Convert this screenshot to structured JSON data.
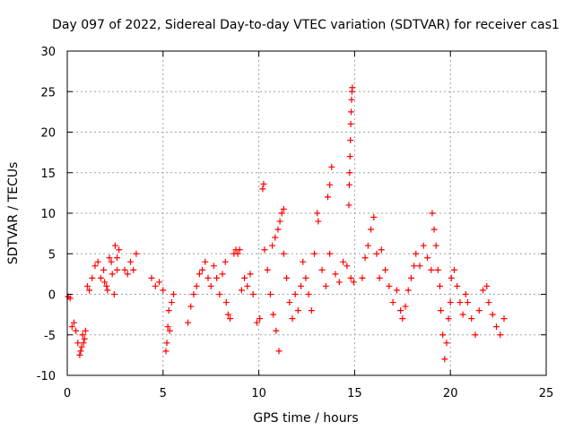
{
  "chart_data": {
    "type": "scatter",
    "title": "Day 097 of 2022, Sidereal Day-to-day VTEC variation (SDTVAR) for receiver cas1",
    "xlabel": "GPS time / hours",
    "ylabel": "SDTVAR / TECUs",
    "xlim": [
      0,
      25
    ],
    "ylim": [
      -10,
      30
    ],
    "xticks": [
      0,
      5,
      10,
      15,
      20,
      25
    ],
    "yticks": [
      -10,
      -5,
      0,
      5,
      10,
      15,
      20,
      25,
      30
    ],
    "grid": true,
    "marker": "+",
    "color": "#ff0000",
    "segments": [
      {
        "x": [
          0.05,
          0.15
        ],
        "y": [
          -0.3,
          -0.5
        ]
      },
      {
        "x": [
          0.25,
          0.35,
          0.45,
          0.55,
          0.65,
          0.7,
          0.75,
          0.8,
          0.85,
          0.9,
          0.95
        ],
        "y": [
          -4.0,
          -3.5,
          -4.5,
          -6.0,
          -7.5,
          -7.0,
          -6.5,
          -5.0,
          -6.0,
          -5.5,
          -4.5
        ]
      },
      {
        "x": [
          1.05,
          1.15,
          1.3,
          1.45,
          1.6,
          1.75,
          1.9,
          2.05,
          2.2,
          2.35,
          2.5,
          2.6,
          2.7
        ],
        "y": [
          1.0,
          0.5,
          2.0,
          3.5,
          4.0,
          2.0,
          3.0,
          1.0,
          4.5,
          2.5,
          6.0,
          4.5,
          5.5
        ]
      },
      {
        "x": [
          1.95,
          2.1,
          2.3,
          2.45,
          2.6
        ],
        "y": [
          1.5,
          0.5,
          4.0,
          0.0,
          3.0
        ]
      },
      {
        "x": [
          3.0,
          3.15,
          3.3,
          3.45,
          3.6
        ],
        "y": [
          3.0,
          2.5,
          4.0,
          3.0,
          5.0
        ]
      },
      {
        "x": [
          4.4,
          4.6,
          4.8,
          5.0
        ],
        "y": [
          2.0,
          1.0,
          1.5,
          0.5
        ]
      },
      {
        "x": [
          5.15,
          5.2,
          5.25,
          5.3,
          5.35,
          5.45,
          5.55
        ],
        "y": [
          -7.0,
          -6.0,
          -4.0,
          -2.0,
          -4.5,
          -1.0,
          0.0
        ]
      },
      {
        "x": [
          6.3,
          6.45,
          6.6,
          6.75,
          6.9
        ],
        "y": [
          -3.5,
          -1.5,
          0.0,
          1.0,
          2.5
        ]
      },
      {
        "x": [
          7.05,
          7.2,
          7.35,
          7.5,
          7.65,
          7.8,
          7.95,
          8.1,
          8.25
        ],
        "y": [
          3.0,
          4.0,
          2.0,
          1.0,
          3.5,
          2.0,
          0.0,
          2.5,
          4.0
        ]
      },
      {
        "x": [
          8.3,
          8.4,
          8.5
        ],
        "y": [
          -1.0,
          -2.5,
          -3.0
        ]
      },
      {
        "x": [
          8.7,
          8.8,
          8.9,
          9.0
        ],
        "y": [
          5.0,
          5.5,
          5.0,
          5.5
        ]
      },
      {
        "x": [
          9.1,
          9.25,
          9.4,
          9.55,
          9.7
        ],
        "y": [
          0.5,
          2.0,
          1.0,
          2.5,
          0.0
        ]
      },
      {
        "x": [
          9.9,
          10.05
        ],
        "y": [
          -3.5,
          -3.0
        ]
      },
      {
        "x": [
          10.2,
          10.25
        ],
        "y": [
          13.0,
          13.6
        ]
      },
      {
        "x": [
          10.3,
          10.45,
          10.6,
          10.75,
          10.9,
          11.05
        ],
        "y": [
          5.5,
          3.0,
          0.0,
          -2.5,
          -4.5,
          -7.0
        ]
      },
      {
        "x": [
          10.7,
          10.85,
          11.0,
          11.1,
          11.2,
          11.3
        ],
        "y": [
          6.0,
          7.0,
          8.0,
          9.0,
          10.0,
          10.5
        ]
      },
      {
        "x": [
          11.3,
          11.45,
          11.6,
          11.75,
          11.9,
          12.05,
          12.2
        ],
        "y": [
          5.0,
          2.0,
          -1.0,
          -3.0,
          0.0,
          -2.0,
          1.0
        ]
      },
      {
        "x": [
          12.3,
          12.45,
          12.6,
          12.75,
          12.9,
          13.05
        ],
        "y": [
          4.0,
          2.0,
          0.0,
          -2.0,
          5.0,
          10.0
        ]
      },
      {
        "x": [
          13.1,
          13.3,
          13.5,
          13.7
        ],
        "y": [
          9.0,
          3.0,
          1.0,
          5.0
        ]
      },
      {
        "x": [
          13.6,
          13.7,
          13.8
        ],
        "y": [
          12.0,
          13.5,
          15.7
        ]
      },
      {
        "x": [
          14.0,
          14.2,
          14.4,
          14.6,
          14.8,
          14.95
        ],
        "y": [
          2.5,
          1.5,
          4.0,
          3.5,
          2.0,
          1.5
        ]
      },
      {
        "x": [
          14.7,
          14.72,
          14.74,
          14.76,
          14.78,
          14.8,
          14.82,
          14.84,
          14.86,
          14.88
        ],
        "y": [
          11.0,
          13.5,
          15.0,
          17.0,
          19.0,
          21.0,
          22.5,
          24.0,
          25.0,
          25.5
        ]
      },
      {
        "x": [
          15.4,
          15.55,
          15.7,
          15.85,
          16.0,
          16.15,
          16.3
        ],
        "y": [
          2.0,
          4.5,
          6.0,
          8.0,
          9.5,
          5.0,
          2.0
        ]
      },
      {
        "x": [
          16.4,
          16.6,
          16.8,
          17.0,
          17.2,
          17.4
        ],
        "y": [
          5.5,
          3.0,
          1.0,
          -1.0,
          0.5,
          -2.0
        ]
      },
      {
        "x": [
          17.5,
          17.65,
          17.8,
          17.95,
          18.1
        ],
        "y": [
          -3.0,
          -1.5,
          0.5,
          2.0,
          3.5
        ]
      },
      {
        "x": [
          18.2,
          18.4,
          18.6,
          18.8,
          19.0
        ],
        "y": [
          5.0,
          3.5,
          6.0,
          4.5,
          3.0
        ]
      },
      {
        "x": [
          19.05,
          19.15,
          19.25,
          19.35,
          19.45
        ],
        "y": [
          10.0,
          8.0,
          6.0,
          3.0,
          1.0
        ]
      },
      {
        "x": [
          19.5,
          19.6,
          19.7,
          19.8,
          19.9,
          20.0
        ],
        "y": [
          -2.0,
          -5.0,
          -8.0,
          -6.0,
          -3.0,
          -1.0
        ]
      },
      {
        "x": [
          20.05,
          20.2,
          20.35,
          20.5,
          20.65,
          20.8
        ],
        "y": [
          2.0,
          3.0,
          1.0,
          -1.0,
          -2.5,
          0.0
        ]
      },
      {
        "x": [
          20.9,
          21.1,
          21.3,
          21.5,
          21.7,
          21.9
        ],
        "y": [
          -1.0,
          -3.0,
          -5.0,
          -2.0,
          0.5,
          1.0
        ]
      },
      {
        "x": [
          22.0,
          22.2,
          22.4,
          22.6,
          22.8
        ],
        "y": [
          -1.0,
          -2.5,
          -4.0,
          -5.0,
          -3.0
        ]
      }
    ]
  }
}
